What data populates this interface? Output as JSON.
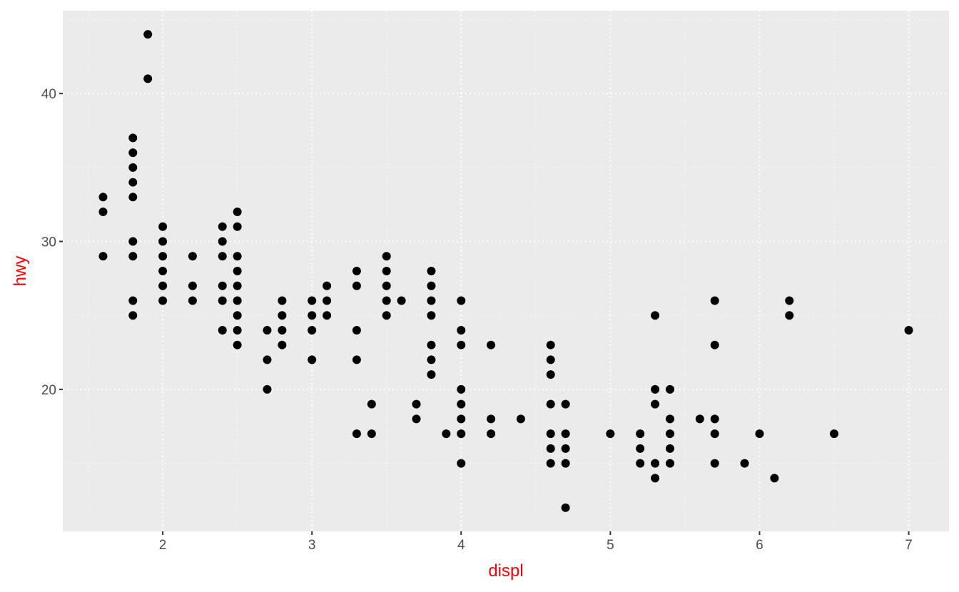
{
  "chart_data": {
    "type": "scatter",
    "xlabel": "displ",
    "ylabel": "hwy",
    "xlim": [
      1.33,
      7.27
    ],
    "ylim": [
      10.4,
      45.6
    ],
    "xticks": [
      2,
      3,
      4,
      5,
      6,
      7
    ],
    "yticks": [
      20,
      30,
      40
    ],
    "grid": true,
    "colors": {
      "panel": "#ebebeb",
      "grid": "#ffffff",
      "points": "#000000",
      "axis_title": "#ff0000",
      "tick_label": "#4d4d4d"
    },
    "points": [
      [
        1.6,
        33
      ],
      [
        1.6,
        32
      ],
      [
        1.6,
        29
      ],
      [
        1.8,
        37
      ],
      [
        1.8,
        36
      ],
      [
        1.8,
        35
      ],
      [
        1.8,
        34
      ],
      [
        1.8,
        33
      ],
      [
        1.8,
        30
      ],
      [
        1.8,
        29
      ],
      [
        1.8,
        26
      ],
      [
        1.8,
        25
      ],
      [
        1.9,
        44
      ],
      [
        1.9,
        41
      ],
      [
        2.0,
        31
      ],
      [
        2.0,
        30
      ],
      [
        2.0,
        29
      ],
      [
        2.0,
        28
      ],
      [
        2.0,
        27
      ],
      [
        2.0,
        26
      ],
      [
        2.2,
        29
      ],
      [
        2.2,
        27
      ],
      [
        2.2,
        26
      ],
      [
        2.4,
        31
      ],
      [
        2.4,
        30
      ],
      [
        2.4,
        29
      ],
      [
        2.4,
        27
      ],
      [
        2.4,
        26
      ],
      [
        2.4,
        24
      ],
      [
        2.5,
        32
      ],
      [
        2.5,
        31
      ],
      [
        2.5,
        29
      ],
      [
        2.5,
        28
      ],
      [
        2.5,
        27
      ],
      [
        2.5,
        26
      ],
      [
        2.5,
        25
      ],
      [
        2.5,
        24
      ],
      [
        2.5,
        23
      ],
      [
        2.7,
        24
      ],
      [
        2.7,
        22
      ],
      [
        2.7,
        20
      ],
      [
        2.8,
        26
      ],
      [
        2.8,
        25
      ],
      [
        2.8,
        24
      ],
      [
        2.8,
        23
      ],
      [
        3.0,
        26
      ],
      [
        3.0,
        25
      ],
      [
        3.0,
        24
      ],
      [
        3.0,
        22
      ],
      [
        3.1,
        27
      ],
      [
        3.1,
        26
      ],
      [
        3.1,
        25
      ],
      [
        3.3,
        28
      ],
      [
        3.3,
        27
      ],
      [
        3.3,
        24
      ],
      [
        3.3,
        22
      ],
      [
        3.3,
        17
      ],
      [
        3.4,
        19
      ],
      [
        3.4,
        17
      ],
      [
        3.5,
        29
      ],
      [
        3.5,
        28
      ],
      [
        3.5,
        27
      ],
      [
        3.5,
        26
      ],
      [
        3.5,
        25
      ],
      [
        3.6,
        26
      ],
      [
        3.7,
        19
      ],
      [
        3.7,
        18
      ],
      [
        3.8,
        28
      ],
      [
        3.8,
        27
      ],
      [
        3.8,
        26
      ],
      [
        3.8,
        25
      ],
      [
        3.8,
        23
      ],
      [
        3.8,
        22
      ],
      [
        3.8,
        21
      ],
      [
        3.9,
        17
      ],
      [
        4.0,
        26
      ],
      [
        4.0,
        24
      ],
      [
        4.0,
        23
      ],
      [
        4.0,
        20
      ],
      [
        4.0,
        19
      ],
      [
        4.0,
        18
      ],
      [
        4.0,
        17
      ],
      [
        4.0,
        15
      ],
      [
        4.2,
        23
      ],
      [
        4.2,
        18
      ],
      [
        4.2,
        17
      ],
      [
        4.4,
        18
      ],
      [
        4.6,
        23
      ],
      [
        4.6,
        22
      ],
      [
        4.6,
        21
      ],
      [
        4.6,
        19
      ],
      [
        4.6,
        17
      ],
      [
        4.6,
        16
      ],
      [
        4.6,
        15
      ],
      [
        4.7,
        19
      ],
      [
        4.7,
        17
      ],
      [
        4.7,
        16
      ],
      [
        4.7,
        15
      ],
      [
        4.7,
        12
      ],
      [
        5.0,
        17
      ],
      [
        5.2,
        17
      ],
      [
        5.2,
        16
      ],
      [
        5.2,
        15
      ],
      [
        5.3,
        25
      ],
      [
        5.3,
        20
      ],
      [
        5.3,
        19
      ],
      [
        5.3,
        15
      ],
      [
        5.3,
        14
      ],
      [
        5.4,
        20
      ],
      [
        5.4,
        18
      ],
      [
        5.4,
        17
      ],
      [
        5.4,
        16
      ],
      [
        5.4,
        15
      ],
      [
        5.6,
        18
      ],
      [
        5.7,
        26
      ],
      [
        5.7,
        23
      ],
      [
        5.7,
        18
      ],
      [
        5.7,
        17
      ],
      [
        5.7,
        15
      ],
      [
        5.9,
        15
      ],
      [
        6.0,
        17
      ],
      [
        6.1,
        14
      ],
      [
        6.2,
        26
      ],
      [
        6.2,
        25
      ],
      [
        6.5,
        17
      ],
      [
        7.0,
        24
      ]
    ]
  }
}
